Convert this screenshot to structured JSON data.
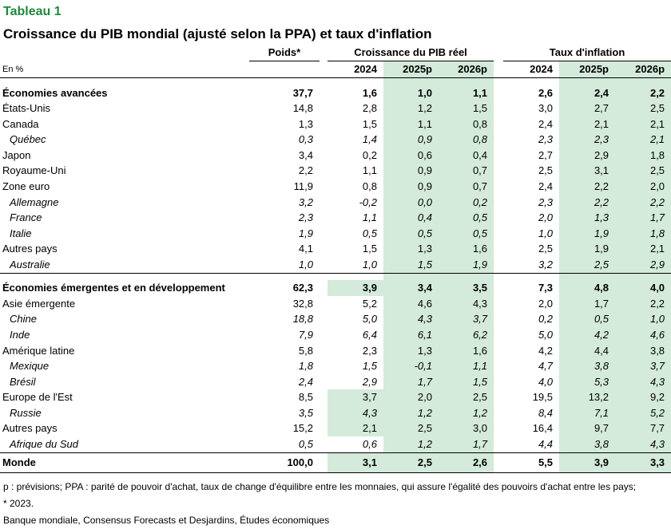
{
  "label": "Tableau 1",
  "title": "Croissance du PIB mondial (ajusté selon la PPA) et taux d'inflation",
  "header": {
    "weights": "Poids*",
    "gdp_group": "Croissance du PIB réel",
    "inflation_group": "Taux d'inflation",
    "unit": "En %",
    "years": [
      "2024",
      "2025p",
      "2026p"
    ]
  },
  "sections": [
    {
      "rows": [
        {
          "name": "Économies avancées",
          "style": "bold",
          "values": [
            "37,7",
            "1,6",
            "1,0",
            "1,1",
            "2,6",
            "2,4",
            "2,2"
          ]
        },
        {
          "name": "États-Unis",
          "style": "normal",
          "values": [
            "14,8",
            "2,8",
            "1,2",
            "1,5",
            "3,0",
            "2,7",
            "2,5"
          ]
        },
        {
          "name": "Canada",
          "style": "normal",
          "values": [
            "1,3",
            "1,5",
            "1,1",
            "0,8",
            "2,4",
            "2,1",
            "2,1"
          ]
        },
        {
          "name": "Québec",
          "style": "italic",
          "values": [
            "0,3",
            "1,4",
            "0,9",
            "0,8",
            "2,3",
            "2,3",
            "2,1"
          ]
        },
        {
          "name": "Japon",
          "style": "normal",
          "values": [
            "3,4",
            "0,2",
            "0,6",
            "0,4",
            "2,7",
            "2,9",
            "1,8"
          ]
        },
        {
          "name": "Royaume-Uni",
          "style": "normal",
          "values": [
            "2,2",
            "1,1",
            "0,9",
            "0,7",
            "2,5",
            "3,1",
            "2,5"
          ]
        },
        {
          "name": "Zone euro",
          "style": "normal",
          "values": [
            "11,9",
            "0,8",
            "0,9",
            "0,7",
            "2,4",
            "2,2",
            "2,0"
          ]
        },
        {
          "name": "Allemagne",
          "style": "italic",
          "values": [
            "3,2",
            "-0,2",
            "0,0",
            "0,2",
            "2,3",
            "2,2",
            "2,2"
          ]
        },
        {
          "name": "France",
          "style": "italic",
          "values": [
            "2,3",
            "1,1",
            "0,4",
            "0,5",
            "2,0",
            "1,3",
            "1,7"
          ]
        },
        {
          "name": "Italie",
          "style": "italic",
          "values": [
            "1,9",
            "0,5",
            "0,5",
            "0,5",
            "1,0",
            "1,9",
            "1,8"
          ]
        },
        {
          "name": "Autres pays",
          "style": "normal",
          "values": [
            "4,1",
            "1,5",
            "1,3",
            "1,6",
            "2,5",
            "1,9",
            "2,1"
          ]
        },
        {
          "name": "Australie",
          "style": "italic",
          "values": [
            "1,0",
            "1,0",
            "1,5",
            "1,9",
            "3,2",
            "2,5",
            "2,9"
          ]
        }
      ]
    },
    {
      "rows": [
        {
          "name": "Économies émergentes et en développement",
          "style": "bold",
          "values": [
            "62,3",
            "3,9",
            "3,4",
            "3,5",
            "7,3",
            "4,8",
            "4,0"
          ]
        },
        {
          "name": "Asie émergente",
          "style": "normal",
          "values": [
            "32,8",
            "5,2",
            "4,6",
            "4,3",
            "2,0",
            "1,7",
            "2,2"
          ]
        },
        {
          "name": "Chine",
          "style": "italic",
          "values": [
            "18,8",
            "5,0",
            "4,3",
            "3,7",
            "0,2",
            "0,5",
            "1,0"
          ]
        },
        {
          "name": "Inde",
          "style": "italic",
          "values": [
            "7,9",
            "6,4",
            "6,1",
            "6,2",
            "5,0",
            "4,2",
            "4,6"
          ]
        },
        {
          "name": "Amérique latine",
          "style": "normal",
          "values": [
            "5,8",
            "2,3",
            "1,3",
            "1,6",
            "4,2",
            "4,4",
            "3,8"
          ]
        },
        {
          "name": "Mexique",
          "style": "italic",
          "values": [
            "1,8",
            "1,5",
            "-0,1",
            "1,1",
            "4,7",
            "3,8",
            "3,7"
          ]
        },
        {
          "name": "Brésil",
          "style": "italic",
          "values": [
            "2,4",
            "2,9",
            "1,7",
            "1,5",
            "4,0",
            "5,3",
            "4,3"
          ]
        },
        {
          "name": "Europe de l'Est",
          "style": "normal",
          "values": [
            "8,5",
            "3,7",
            "2,0",
            "2,5",
            "19,5",
            "13,2",
            "9,2"
          ]
        },
        {
          "name": "Russie",
          "style": "italic",
          "values": [
            "3,5",
            "4,3",
            "1,2",
            "1,2",
            "8,4",
            "7,1",
            "5,2"
          ]
        },
        {
          "name": "Autres pays",
          "style": "normal",
          "values": [
            "15,2",
            "2,1",
            "2,5",
            "3,0",
            "16,4",
            "9,7",
            "7,7"
          ]
        },
        {
          "name": "Afrique du Sud",
          "style": "italic",
          "values": [
            "0,5",
            "0,6",
            "1,2",
            "1,7",
            "4,4",
            "3,8",
            "4,3"
          ]
        }
      ]
    }
  ],
  "world": {
    "name": "Monde",
    "values": [
      "100,0",
      "3,1",
      "2,5",
      "2,6",
      "5,5",
      "3,9",
      "3,3"
    ]
  },
  "notes": [
    "p : prévisions; PPA : parité de pouvoir d'achat, taux de change d'équilibre entre les monnaies, qui assure l'égalité des pouvoirs d'achat entre les pays;",
    "* 2023.",
    "Banque mondiale, Consensus Forecasts et Desjardins, Études économiques"
  ]
}
